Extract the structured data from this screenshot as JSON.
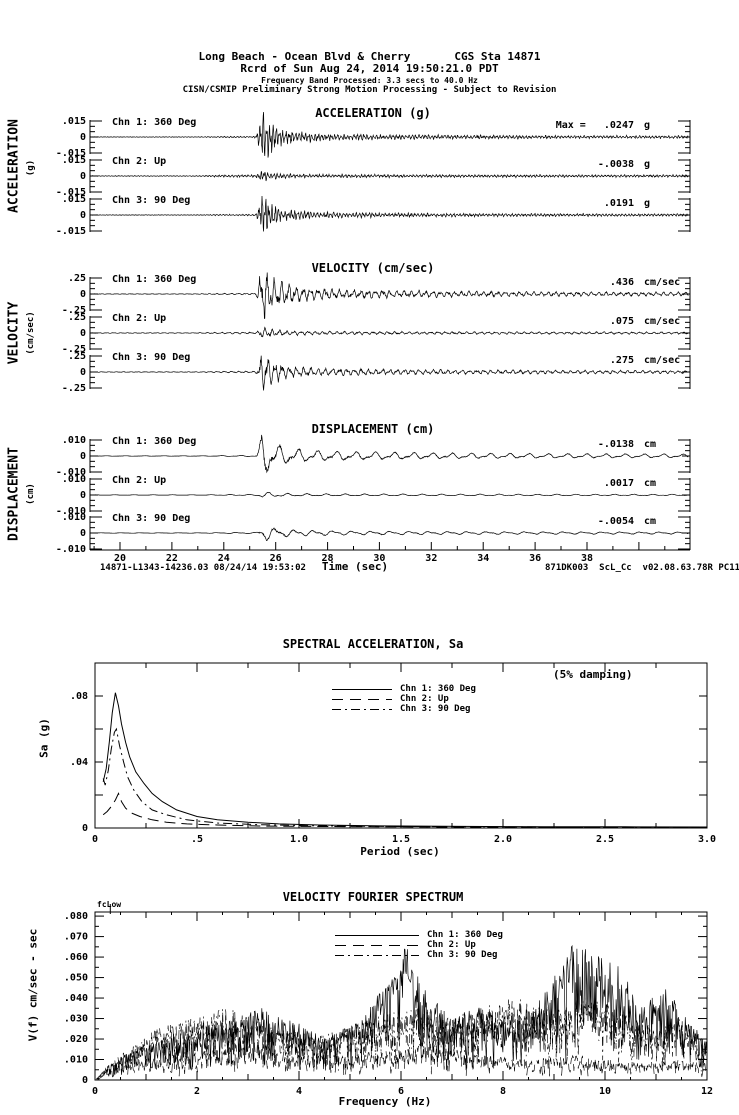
{
  "page": {
    "background": "#ffffff",
    "ink": "#000000"
  },
  "header": {
    "location": "Long Beach - Ocean Blvd & Cherry",
    "station": "CGS Sta 14871",
    "record_line": "Rcrd of Sun Aug 24, 2014 19:50:21.0 PDT",
    "band_line": "Frequency Band Processed: 3.3 secs to 40.0 Hz",
    "notice_line": "CISN/CSMIP Preliminary Strong Motion Processing - Subject to Revision"
  },
  "footer": {
    "left": "14871-L1343-14236.03 08/24/14 19:53:02",
    "right": "871DK003  ScL_Cc  v02.08.63.78R PC11"
  },
  "chart_data": [
    {
      "type": "line",
      "kind": "timeseries",
      "title": "ACCELERATION (g)",
      "side_label": "ACCELERATION",
      "side_unit": "(g)",
      "full_scale": 0.015,
      "ytick_labels": [
        ".015",
        "0",
        "-.015"
      ],
      "event_time_sec": 25.45,
      "traces": [
        {
          "label": "Chn 1: 360 Deg",
          "max_prefix": "Max =",
          "max_value": ".0247",
          "unit": "g",
          "peak": 0.0247
        },
        {
          "label": "Chn 2: Up",
          "max_value": "-.0038",
          "unit": "g",
          "peak": -0.0038
        },
        {
          "label": "Chn 3: 90 Deg",
          "max_value": ".0191",
          "unit": "g",
          "peak": 0.0191
        }
      ]
    },
    {
      "type": "line",
      "kind": "timeseries",
      "title": "VELOCITY (cm/sec)",
      "side_label": "VELOCITY",
      "side_unit": "(cm/sec)",
      "full_scale": 0.25,
      "ytick_labels": [
        ".25",
        "0",
        "-.25"
      ],
      "event_time_sec": 25.45,
      "traces": [
        {
          "label": "Chn 1: 360 Deg",
          "max_value": ".436",
          "unit": "cm/sec",
          "peak": 0.436
        },
        {
          "label": "Chn 2: Up",
          "max_value": ".075",
          "unit": "cm/sec",
          "peak": 0.075
        },
        {
          "label": "Chn 3: 90 Deg",
          "max_value": ".275",
          "unit": "cm/sec",
          "peak": 0.275
        }
      ]
    },
    {
      "type": "line",
      "kind": "timeseries",
      "title": "DISPLACEMENT (cm)",
      "side_label": "DISPLACEMENT",
      "side_unit": "(cm)",
      "full_scale": 0.01,
      "ytick_labels": [
        ".010",
        "0",
        "-.010"
      ],
      "event_time_sec": 25.45,
      "xlabel": "Time (sec)",
      "xlim": [
        18.85,
        41.9
      ],
      "xticks": [
        20,
        22,
        24,
        26,
        28,
        30,
        32,
        34,
        36,
        38
      ],
      "traces": [
        {
          "label": "Chn 1: 360 Deg",
          "max_value": "-.0138",
          "unit": "cm",
          "peak": -0.0138
        },
        {
          "label": "Chn 2: Up",
          "max_value": ".0017",
          "unit": "cm",
          "peak": 0.0017
        },
        {
          "label": "Chn 3: 90 Deg",
          "max_value": "-.0054",
          "unit": "cm",
          "peak": -0.0054
        }
      ]
    },
    {
      "type": "line",
      "kind": "response_spectrum",
      "title": "SPECTRAL ACCELERATION, Sa",
      "note": "(5% damping)",
      "ylabel": "Sa (g)",
      "xlabel": "Period (sec)",
      "xlim": [
        0,
        3.0
      ],
      "ylim": [
        0,
        0.1
      ],
      "xtick_vals": [
        0,
        0.5,
        1.0,
        1.5,
        2.0,
        2.5,
        3.0
      ],
      "xtick_labels": [
        "0",
        ".5",
        "1.0",
        "1.5",
        "2.0",
        "2.5",
        "3.0"
      ],
      "ytick_vals": [
        0,
        0.04,
        0.08
      ],
      "ytick_labels": [
        "0",
        ".04",
        ".08"
      ],
      "series": [
        {
          "name": "Chn 1: 360 Deg",
          "style": "solid",
          "points": [
            [
              0.04,
              0.028
            ],
            [
              0.055,
              0.036
            ],
            [
              0.07,
              0.052
            ],
            [
              0.085,
              0.07
            ],
            [
              0.1,
              0.082
            ],
            [
              0.115,
              0.074
            ],
            [
              0.13,
              0.063
            ],
            [
              0.15,
              0.052
            ],
            [
              0.17,
              0.043
            ],
            [
              0.2,
              0.034
            ],
            [
              0.24,
              0.027
            ],
            [
              0.28,
              0.021
            ],
            [
              0.33,
              0.016
            ],
            [
              0.4,
              0.011
            ],
            [
              0.5,
              0.007
            ],
            [
              0.6,
              0.005
            ],
            [
              0.75,
              0.0035
            ],
            [
              0.9,
              0.0025
            ],
            [
              1.1,
              0.0018
            ],
            [
              1.4,
              0.0013
            ],
            [
              1.8,
              0.001
            ],
            [
              2.2,
              0.0008
            ],
            [
              2.6,
              0.0007
            ],
            [
              3.0,
              0.0006
            ]
          ]
        },
        {
          "name": "Chn 2: Up",
          "style": "dashed",
          "points": [
            [
              0.04,
              0.008
            ],
            [
              0.06,
              0.01
            ],
            [
              0.08,
              0.013
            ],
            [
              0.1,
              0.017
            ],
            [
              0.115,
              0.021
            ],
            [
              0.13,
              0.016
            ],
            [
              0.15,
              0.012
            ],
            [
              0.18,
              0.009
            ],
            [
              0.22,
              0.007
            ],
            [
              0.28,
              0.005
            ],
            [
              0.35,
              0.0035
            ],
            [
              0.45,
              0.0025
            ],
            [
              0.6,
              0.0018
            ],
            [
              0.8,
              0.0012
            ],
            [
              1.1,
              0.0009
            ],
            [
              1.5,
              0.0007
            ],
            [
              2.0,
              0.0005
            ],
            [
              3.0,
              0.0004
            ]
          ]
        },
        {
          "name": "Chn 3: 90 Deg",
          "style": "dashdot",
          "points": [
            [
              0.04,
              0.03
            ],
            [
              0.05,
              0.026
            ],
            [
              0.065,
              0.035
            ],
            [
              0.08,
              0.048
            ],
            [
              0.095,
              0.058
            ],
            [
              0.105,
              0.06
            ],
            [
              0.12,
              0.05
            ],
            [
              0.14,
              0.04
            ],
            [
              0.16,
              0.031
            ],
            [
              0.19,
              0.023
            ],
            [
              0.23,
              0.016
            ],
            [
              0.28,
              0.011
            ],
            [
              0.35,
              0.008
            ],
            [
              0.45,
              0.005
            ],
            [
              0.6,
              0.003
            ],
            [
              0.8,
              0.002
            ],
            [
              1.1,
              0.0013
            ],
            [
              1.5,
              0.0009
            ],
            [
              2.0,
              0.0007
            ],
            [
              2.5,
              0.0005
            ],
            [
              3.0,
              0.0004
            ]
          ]
        }
      ]
    },
    {
      "type": "line",
      "kind": "fourier_spectrum",
      "title": "VELOCITY FOURIER SPECTRUM",
      "corner_label": "fcLow",
      "ylabel": "V(f)   cm/sec - sec",
      "xlabel": "Frequency (Hz)",
      "xlim": [
        0,
        12
      ],
      "ylim": [
        0,
        0.082
      ],
      "xtick_vals": [
        0,
        2,
        4,
        6,
        8,
        10,
        12
      ],
      "xtick_labels": [
        "0",
        "2",
        "4",
        "6",
        "8",
        "10",
        "12"
      ],
      "ytick_vals": [
        0,
        0.01,
        0.02,
        0.03,
        0.04,
        0.05,
        0.06,
        0.07,
        0.08
      ],
      "ytick_labels": [
        "0",
        ".010",
        ".020",
        ".030",
        ".040",
        ".050",
        ".060",
        ".070",
        ".080"
      ],
      "series": [
        {
          "name": "Chn 1: 360 Deg",
          "style": "solid",
          "envelope": [
            [
              0,
              0
            ],
            [
              0.3,
              0.008
            ],
            [
              0.8,
              0.015
            ],
            [
              1.5,
              0.022
            ],
            [
              2.5,
              0.028
            ],
            [
              3.2,
              0.035
            ],
            [
              3.8,
              0.03
            ],
            [
              4.5,
              0.02
            ],
            [
              5.2,
              0.028
            ],
            [
              5.8,
              0.05
            ],
            [
              6.1,
              0.065
            ],
            [
              6.4,
              0.045
            ],
            [
              7.0,
              0.03
            ],
            [
              7.5,
              0.035
            ],
            [
              8.0,
              0.03
            ],
            [
              8.6,
              0.035
            ],
            [
              9.0,
              0.05
            ],
            [
              9.4,
              0.067
            ],
            [
              9.8,
              0.06
            ],
            [
              10.3,
              0.055
            ],
            [
              10.7,
              0.035
            ],
            [
              11.2,
              0.045
            ],
            [
              11.6,
              0.03
            ],
            [
              12,
              0.018
            ]
          ]
        },
        {
          "name": "Chn 2: Up",
          "style": "dashed",
          "envelope": [
            [
              0,
              0
            ],
            [
              0.5,
              0.008
            ],
            [
              1.5,
              0.012
            ],
            [
              2.5,
              0.015
            ],
            [
              3.0,
              0.02
            ],
            [
              4.0,
              0.012
            ],
            [
              5.0,
              0.012
            ],
            [
              6.0,
              0.015
            ],
            [
              6.5,
              0.018
            ],
            [
              7.5,
              0.012
            ],
            [
              8.5,
              0.01
            ],
            [
              9.5,
              0.012
            ],
            [
              10.5,
              0.008
            ],
            [
              11.5,
              0.01
            ],
            [
              12,
              0.008
            ]
          ]
        },
        {
          "name": "Chn 3: 90 Deg",
          "style": "dashdot",
          "envelope": [
            [
              0,
              0
            ],
            [
              0.5,
              0.012
            ],
            [
              1.2,
              0.025
            ],
            [
              2.0,
              0.03
            ],
            [
              2.6,
              0.035
            ],
            [
              3.5,
              0.025
            ],
            [
              4.5,
              0.022
            ],
            [
              5.5,
              0.03
            ],
            [
              6.2,
              0.035
            ],
            [
              7.0,
              0.03
            ],
            [
              7.6,
              0.035
            ],
            [
              8.2,
              0.04
            ],
            [
              9.0,
              0.035
            ],
            [
              9.6,
              0.04
            ],
            [
              10.2,
              0.035
            ],
            [
              11.0,
              0.025
            ],
            [
              11.5,
              0.03
            ],
            [
              12,
              0.015
            ]
          ]
        }
      ]
    }
  ]
}
